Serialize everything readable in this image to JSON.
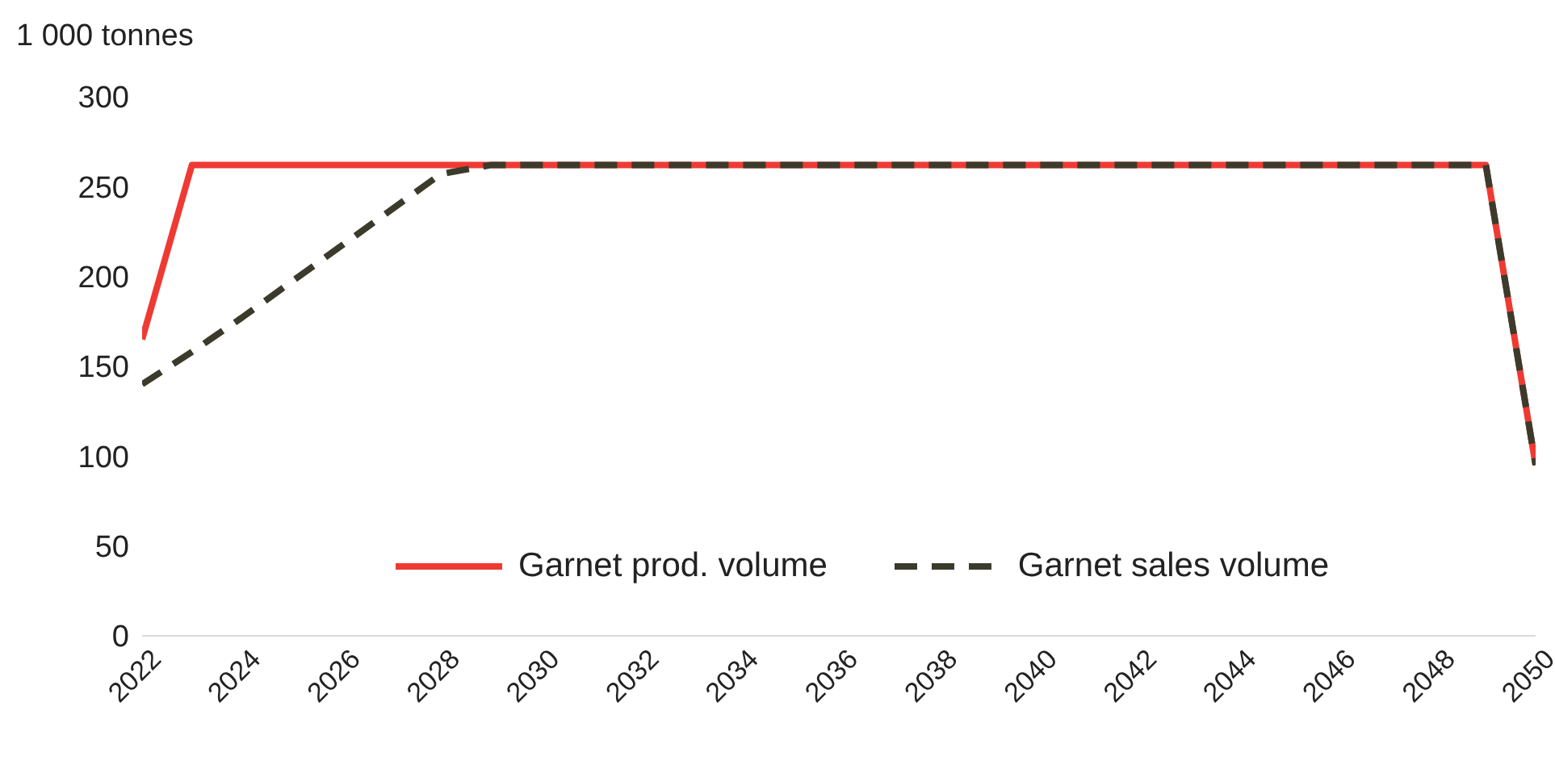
{
  "chart_data": {
    "type": "line",
    "ylabel": "1 000 tonnes",
    "x": [
      2022,
      2023,
      2024,
      2025,
      2026,
      2027,
      2028,
      2029,
      2030,
      2031,
      2032,
      2033,
      2034,
      2035,
      2036,
      2037,
      2038,
      2039,
      2040,
      2041,
      2042,
      2043,
      2044,
      2045,
      2046,
      2047,
      2048,
      2049,
      2050
    ],
    "series": [
      {
        "name": "Garnet prod. volume",
        "color": "#ee3a33",
        "line_style": "solid",
        "values": [
          165,
          262,
          262,
          262,
          262,
          262,
          262,
          262,
          262,
          262,
          262,
          262,
          262,
          262,
          262,
          262,
          262,
          262,
          262,
          262,
          262,
          262,
          262,
          262,
          262,
          262,
          262,
          262,
          95
        ]
      },
      {
        "name": "Garnet sales volume",
        "color": "#3b3b2c",
        "line_style": "dashed",
        "values": [
          140,
          158,
          177,
          197,
          217,
          237,
          257,
          262,
          262,
          262,
          262,
          262,
          262,
          262,
          262,
          262,
          262,
          262,
          262,
          262,
          262,
          262,
          262,
          262,
          262,
          262,
          262,
          262,
          95
        ]
      }
    ],
    "xlim": [
      2022,
      2050
    ],
    "xticks": [
      2022,
      2024,
      2026,
      2028,
      2030,
      2032,
      2034,
      2036,
      2038,
      2040,
      2042,
      2044,
      2046,
      2048,
      2050
    ],
    "ylim": [
      0,
      300
    ],
    "yticks": [
      0,
      50,
      100,
      150,
      200,
      250,
      300
    ],
    "grid": false,
    "legend": "bottom",
    "marker": "none"
  }
}
